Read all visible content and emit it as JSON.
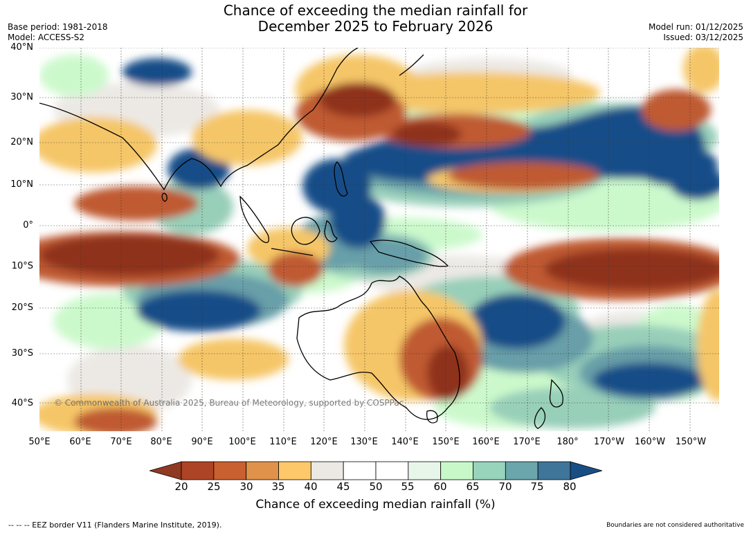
{
  "header": {
    "title_line1": "Chance of exceeding the median rainfall for",
    "title_line2": "December 2025 to February 2026",
    "base_period": "Base period: 1981-2018",
    "model": "Model: ACCESS-S2",
    "model_run": "Model run: 01/12/2025",
    "issued": "Issued: 03/12/2025"
  },
  "map": {
    "lat_labels": [
      "40°N",
      "30°N",
      "20°N",
      "10°N",
      "0°",
      "10°S",
      "20°S",
      "30°S",
      "40°S"
    ],
    "lon_labels": [
      "50°E",
      "60°E",
      "70°E",
      "80°E",
      "90°E",
      "100°E",
      "110°E",
      "120°E",
      "130°E",
      "140°E",
      "150°E",
      "160°E",
      "170°E",
      "180°",
      "170°W",
      "160°W",
      "150°W"
    ],
    "copyright": "© Commonwealth of Australia 2025, Bureau of Meteorology, supported by COSPPac",
    "categories": {
      "dry_very": "#8f321c",
      "dry": "#bf5a31",
      "dry_mod": "#f5c667",
      "neutral": "#ece9e5",
      "wet_light": "#ccf9cc",
      "wet_mod": "#98cfb9",
      "wet": "#679fa8",
      "wet_very": "#164e88"
    }
  },
  "colorbar": {
    "ticks": [
      "20",
      "25",
      "30",
      "35",
      "40",
      "45",
      "50",
      "55",
      "60",
      "65",
      "70",
      "75",
      "80"
    ],
    "colors": [
      "#8f3a22",
      "#ad4425",
      "#c9602f",
      "#e0924a",
      "#fcc86a",
      "#ece8e3",
      "#ffffff",
      "#ffffff",
      "#e8f6ea",
      "#c8f8c8",
      "#98d3bc",
      "#6aa6ac",
      "#3f7598",
      "#194e85"
    ],
    "label": "Chance of exceeding median rainfall (%)"
  },
  "footer": {
    "eez_note": "--  --  -- EEZ border V11 (Flanders Marine Institute, 2019).",
    "disclaimer": "Boundaries are not considered authoritative"
  }
}
